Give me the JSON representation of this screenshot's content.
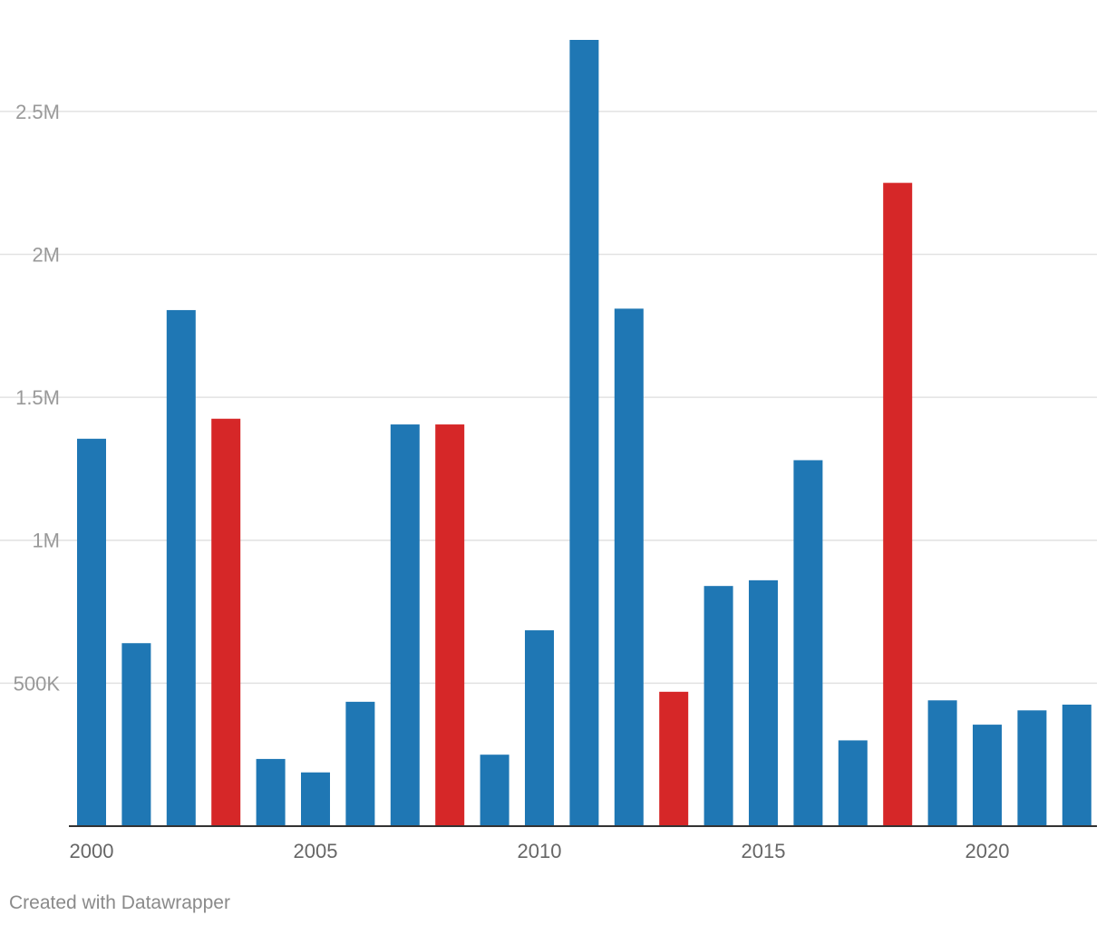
{
  "chart_data": {
    "type": "bar",
    "x": [
      2000,
      2001,
      2002,
      2003,
      2004,
      2005,
      2006,
      2007,
      2008,
      2009,
      2010,
      2011,
      2012,
      2013,
      2014,
      2015,
      2016,
      2017,
      2018,
      2019,
      2020,
      2021,
      2022
    ],
    "values": [
      1355000,
      640000,
      1805000,
      1425000,
      235000,
      188000,
      435000,
      1405000,
      1405000,
      250000,
      685000,
      2750000,
      1810000,
      470000,
      840000,
      860000,
      1280000,
      300000,
      2250000,
      440000,
      355000,
      405000,
      425000
    ],
    "highlighted": [
      2003,
      2008,
      2013,
      2018
    ],
    "colors": {
      "default": "#1f77b4",
      "highlight": "#d62728"
    },
    "y_ticks": [
      500000,
      1000000,
      1500000,
      2000000,
      2500000
    ],
    "y_tick_labels": [
      "500K",
      "1M",
      "1.5M",
      "2M",
      "2.5M"
    ],
    "x_ticks": [
      2000,
      2005,
      2010,
      2015,
      2020
    ],
    "x_tick_labels": [
      "2000",
      "2005",
      "2010",
      "2015",
      "2020"
    ],
    "ylim": [
      0,
      2750000
    ],
    "grid": true,
    "title": "",
    "xlabel": "",
    "ylabel": ""
  },
  "footer": {
    "credit": "Created with Datawrapper"
  }
}
